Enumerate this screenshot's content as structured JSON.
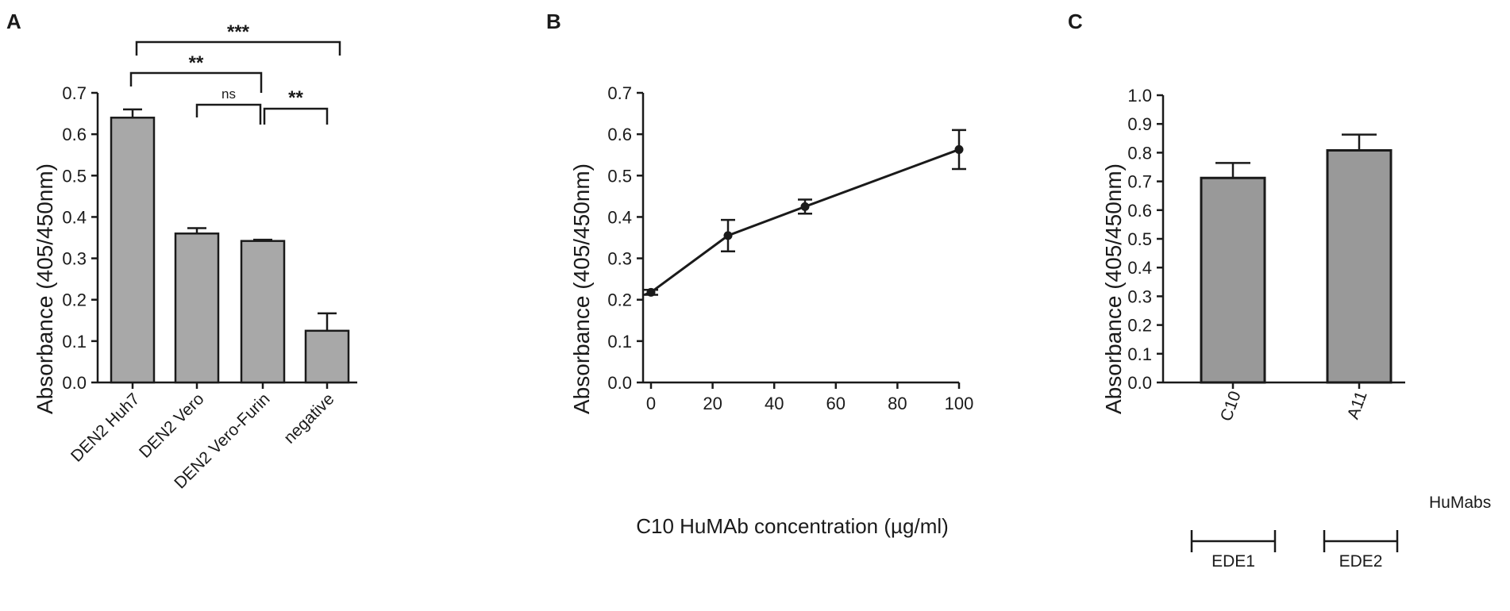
{
  "chart_data": [
    {
      "panel": "A",
      "type": "bar",
      "ylabel": "Absorbance (405/450nm)",
      "ylim": [
        0,
        0.7
      ],
      "yticks": [
        "0.0",
        "0.1",
        "0.2",
        "0.3",
        "0.4",
        "0.5",
        "0.6",
        "0.7"
      ],
      "categories": [
        "DEN2 Huh7",
        "DEN2 Vero",
        "DEN2 Vero-Furin",
        "negative"
      ],
      "values": [
        0.64,
        0.36,
        0.342,
        0.125
      ],
      "errors": [
        0.02,
        0.013,
        0.003,
        0.042
      ],
      "significance": [
        {
          "from": 0,
          "to": 3,
          "label": "***"
        },
        {
          "from": 0,
          "to": 2,
          "label": "**"
        },
        {
          "from": 1,
          "to": 2,
          "label": "ns"
        },
        {
          "from": 2,
          "to": 3,
          "label": "**"
        }
      ],
      "colors": {
        "bar": "#a8a8a8"
      }
    },
    {
      "panel": "B",
      "type": "line",
      "xlabel": "C10 HuMAb concentration (µg/ml)",
      "ylabel": "Absorbance (405/450nm)",
      "xlim": [
        0,
        100
      ],
      "ylim": [
        0,
        0.7
      ],
      "xticks": [
        "0",
        "20",
        "40",
        "60",
        "80",
        "100"
      ],
      "yticks": [
        "0.0",
        "0.1",
        "0.2",
        "0.3",
        "0.4",
        "0.5",
        "0.6",
        "0.7"
      ],
      "x": [
        0,
        25,
        50,
        100
      ],
      "y": [
        0.218,
        0.355,
        0.425,
        0.563
      ],
      "errors": [
        0.006,
        0.038,
        0.017,
        0.047
      ]
    },
    {
      "panel": "C",
      "type": "bar",
      "ylabel": "Absorbance (405/450nm)",
      "ylim": [
        0,
        1.0
      ],
      "yticks": [
        "0.0",
        "0.1",
        "0.2",
        "0.3",
        "0.4",
        "0.5",
        "0.6",
        "0.7",
        "0.8",
        "0.9",
        "1.0"
      ],
      "categories": [
        "C10",
        "A11"
      ],
      "values": [
        0.712,
        0.808
      ],
      "errors": [
        0.052,
        0.055
      ],
      "xlabel_right": "HuMabs",
      "groups": [
        "EDE1",
        "EDE2"
      ],
      "colors": {
        "bar": "#999999"
      }
    }
  ]
}
